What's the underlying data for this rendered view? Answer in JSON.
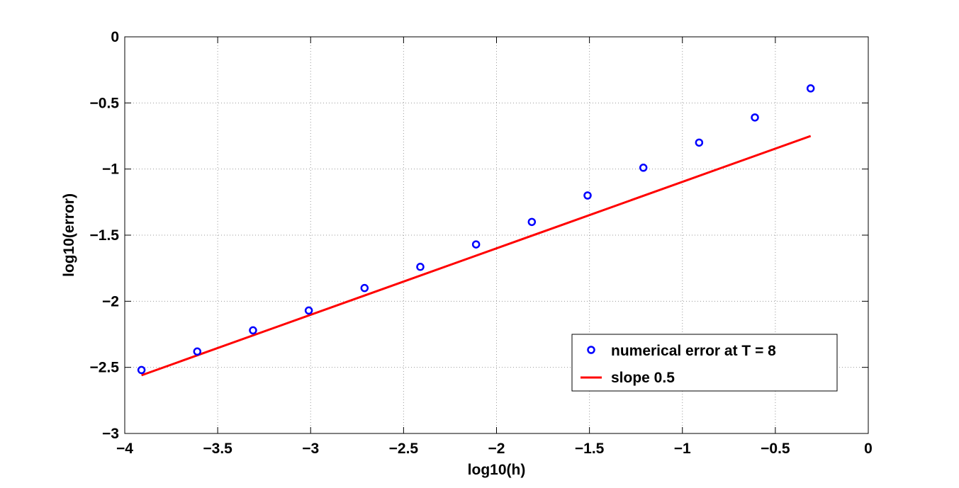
{
  "chart_data": {
    "type": "scatter",
    "title": "",
    "xlabel": "log10(h)",
    "ylabel": "log10(error)",
    "xlim": [
      -4,
      0
    ],
    "ylim": [
      -3,
      0
    ],
    "grid": true,
    "xticks": [
      -4,
      -3.5,
      -3,
      -2.5,
      -2,
      -1.5,
      -1,
      -0.5,
      0
    ],
    "yticks": [
      0,
      -0.5,
      -1,
      -1.5,
      -2,
      -2.5,
      -3
    ],
    "xtick_labels": [
      "−4",
      "−3.5",
      "−3",
      "−2.5",
      "−2",
      "−1.5",
      "−1",
      "−0.5",
      "0"
    ],
    "ytick_labels": [
      "0",
      "−0.5",
      "−1",
      "−1.5",
      "−2",
      "−2.5",
      "−3"
    ],
    "series": [
      {
        "name": "numerical error at T = 8",
        "kind": "markers",
        "color": "#0000ff",
        "x": [
          -3.91,
          -3.61,
          -3.31,
          -3.01,
          -2.71,
          -2.41,
          -2.11,
          -1.81,
          -1.51,
          -1.21,
          -0.91,
          -0.61,
          -0.31
        ],
        "y": [
          -2.52,
          -2.38,
          -2.22,
          -2.07,
          -1.9,
          -1.74,
          -1.57,
          -1.4,
          -1.2,
          -0.99,
          -0.8,
          -0.61,
          -0.39
        ]
      },
      {
        "name": "slope 0.5",
        "kind": "line",
        "color": "#ff0000",
        "x": [
          -3.91,
          -0.31
        ],
        "y": [
          -2.56,
          -0.75
        ]
      }
    ],
    "legend_position": "bottom-right"
  }
}
